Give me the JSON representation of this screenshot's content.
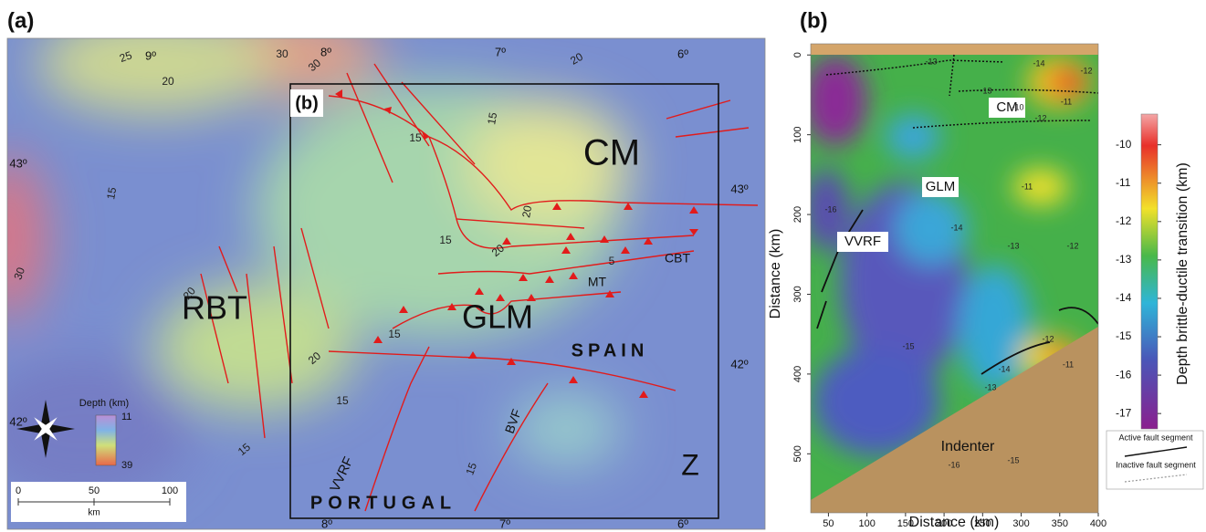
{
  "panel_a": {
    "label": "(a)",
    "inset_label": "(b)",
    "regions": [
      "RBT",
      "GLM",
      "CM",
      "SPAIN",
      "PORTUGAL",
      "Z",
      "CBT",
      "MT",
      "VVRF",
      "BVF"
    ],
    "contour_labels": [
      25,
      30,
      30,
      20,
      20,
      15,
      15,
      15,
      20,
      20,
      15,
      30,
      20,
      15,
      20,
      15,
      15,
      15,
      5
    ],
    "longitude_labels": [
      "9º",
      "8º",
      "7º",
      "6º",
      "8º",
      "7º",
      "6º"
    ],
    "latitude_labels": [
      "43º",
      "42º",
      "43º",
      "42º"
    ],
    "depth_legend": {
      "title": "Depth (km)",
      "min": "11",
      "max": "39"
    },
    "scale_bar": {
      "ticks": [
        "0",
        "50",
        "100"
      ],
      "unit": "km"
    }
  },
  "panel_b": {
    "label": "(b)",
    "x_label": "Distance (km)",
    "y_label": "Distance (km)",
    "xlim": [
      27,
      400
    ],
    "xticks": [
      50,
      100,
      150,
      200,
      250,
      300,
      350,
      400
    ],
    "ylim": [
      -14,
      574
    ],
    "yticks": [
      0,
      100,
      200,
      300,
      400,
      500
    ],
    "regions": [
      "CM",
      "GLM",
      "VVRF",
      "Indenter"
    ],
    "contour_labels": [
      -13,
      -14,
      -12,
      -10,
      -11,
      -13,
      -12,
      -11,
      -14,
      -13,
      -15,
      -15,
      -16,
      -12,
      -11,
      -14,
      -13,
      -12,
      -16
    ],
    "colorbar": {
      "label": "Depth brittle-ductile transition (km)",
      "lim": [
        -9.2,
        -17.4
      ],
      "ticks": [
        -10,
        -11,
        -12,
        -13,
        -14,
        -15,
        -16,
        -17
      ]
    },
    "legend": [
      "Active fault segment",
      "Inactive fault segment"
    ]
  }
}
